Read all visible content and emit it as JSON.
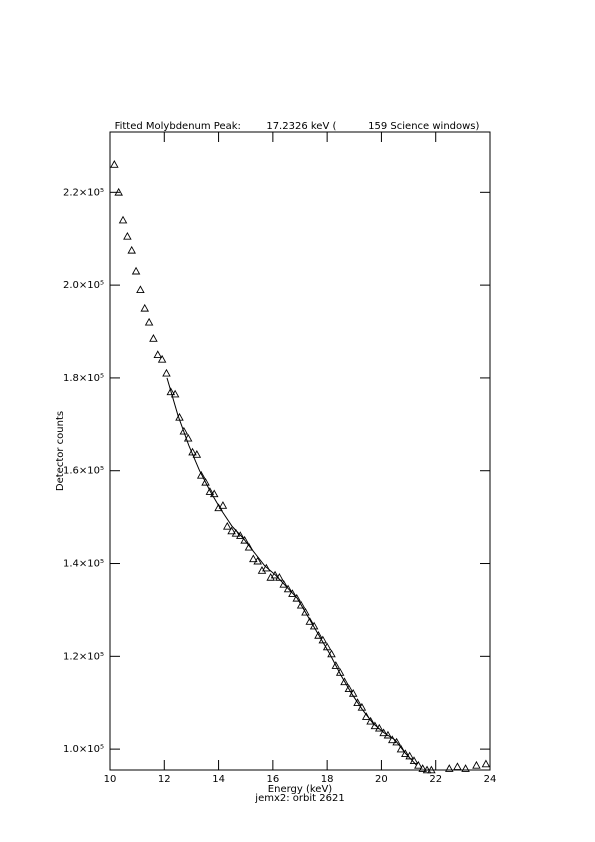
{
  "chart_data": {
    "type": "scatter",
    "title": "Fitted Molybdenum Peak:        17.2326 keV (          159 Science windows)",
    "xlabel": "Energy (keV)",
    "ylabel": "Detector counts",
    "subtitle": "jemx2: orbit 2621",
    "xlim": [
      10,
      24
    ],
    "xticks": [
      10,
      12,
      14,
      16,
      18,
      20,
      22,
      24
    ],
    "ylim": [
      95500,
      233000
    ],
    "yticks": [
      {
        "value": 100000,
        "label": "1.0×10⁵"
      },
      {
        "value": 120000,
        "label": "1.2×10⁵"
      },
      {
        "value": 140000,
        "label": "1.4×10⁵"
      },
      {
        "value": 160000,
        "label": "1.6×10⁵"
      },
      {
        "value": 180000,
        "label": "1.8×10⁵"
      },
      {
        "value": 200000,
        "label": "2.0×10⁵"
      },
      {
        "value": 220000,
        "label": "2.2×10⁵"
      }
    ],
    "series": [
      {
        "color": "#000000",
        "marker": "triangle",
        "x": [
          10.16,
          10.32,
          10.48,
          10.64,
          10.8,
          10.96,
          11.12,
          11.28,
          11.44,
          11.6,
          11.76,
          11.92,
          12.08,
          12.24,
          12.4,
          12.56,
          12.72,
          12.88,
          13.04,
          13.2,
          13.36,
          13.52,
          13.68,
          13.84,
          14.0,
          14.16,
          14.32,
          14.48,
          14.64,
          14.8,
          14.96,
          15.12,
          15.28,
          15.44,
          15.6,
          15.76,
          15.92,
          16.08,
          16.24,
          16.4,
          16.56,
          16.72,
          16.88,
          17.04,
          17.2,
          17.36,
          17.52,
          17.68,
          17.84,
          18.0,
          18.16,
          18.32,
          18.48,
          18.64,
          18.8,
          18.96,
          19.12,
          19.28,
          19.44,
          19.6,
          19.76,
          19.92,
          20.08,
          20.24,
          20.4,
          20.56,
          20.72,
          20.88,
          21.04,
          21.2,
          21.36,
          21.52,
          21.68,
          21.84,
          22.5,
          22.8,
          23.1,
          23.5,
          23.85
        ],
        "values": [
          226000,
          220000,
          214000,
          210500,
          207500,
          203000,
          199000,
          195000,
          192000,
          188500,
          185000,
          184000,
          181000,
          177000,
          176500,
          171500,
          168500,
          167000,
          164000,
          163500,
          159000,
          157500,
          155500,
          155000,
          152000,
          152500,
          148000,
          147000,
          146500,
          146000,
          145000,
          143500,
          141000,
          140500,
          138500,
          139000,
          137000,
          137500,
          137000,
          135500,
          134500,
          133500,
          132500,
          131000,
          129500,
          127500,
          126500,
          124500,
          123500,
          122000,
          120500,
          118000,
          116500,
          114500,
          113000,
          112000,
          110000,
          109000,
          107000,
          106000,
          105000,
          104500,
          103500,
          103000,
          102000,
          101500,
          100000,
          99000,
          98500,
          97500,
          96500,
          95800,
          95500,
          95500,
          95800,
          96200,
          95800,
          96500,
          96800
        ]
      },
      {
        "color": "#000000",
        "marker": "line",
        "x": [
          12.1,
          12.5,
          12.9,
          13.3,
          13.7,
          14.1,
          14.5,
          14.9,
          15.3,
          15.7,
          16.1,
          16.5,
          16.9,
          17.3,
          17.7,
          18.1,
          18.5,
          18.9,
          19.3,
          19.7,
          20.1,
          20.5,
          20.9,
          21.3
        ],
        "values": [
          180000,
          172000,
          165500,
          160000,
          155500,
          151500,
          148000,
          145500,
          142500,
          139500,
          137500,
          135000,
          132500,
          128500,
          124500,
          120500,
          116000,
          112000,
          108500,
          105500,
          103500,
          102000,
          99000,
          96500
        ]
      }
    ]
  }
}
